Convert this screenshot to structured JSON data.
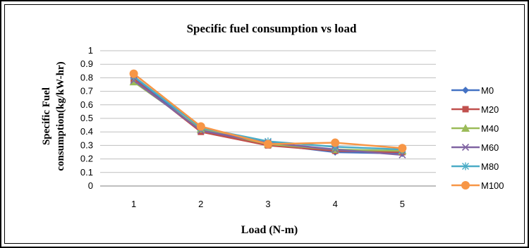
{
  "chart_data": {
    "type": "line",
    "title": "Specific fuel consumption vs load",
    "xlabel": "Load (N-m)",
    "ylabel_lines": [
      "Specific Fuel",
      "consumption(kg/kW-hr)"
    ],
    "x": [
      1,
      2,
      3,
      4,
      5
    ],
    "ylim": [
      0,
      1
    ],
    "yticks": [
      "0",
      "0.1",
      "0.2",
      "0.3",
      "0.4",
      "0.5",
      "0.6",
      "0.7",
      "0.8",
      "0.9",
      "1"
    ],
    "xticks": [
      "1",
      "2",
      "3",
      "4",
      "5"
    ],
    "grid": true,
    "legend_position": "right",
    "series": [
      {
        "name": "M0",
        "values": [
          0.8,
          0.41,
          0.31,
          0.25,
          0.24
        ],
        "color": "#4472C4",
        "marker": "diamond"
      },
      {
        "name": "M20",
        "values": [
          0.79,
          0.4,
          0.3,
          0.26,
          0.25
        ],
        "color": "#C0504D",
        "marker": "square"
      },
      {
        "name": "M40",
        "values": [
          0.77,
          0.42,
          0.31,
          0.27,
          0.26
        ],
        "color": "#9BBB59",
        "marker": "triangle"
      },
      {
        "name": "M60",
        "values": [
          0.78,
          0.41,
          0.32,
          0.27,
          0.23
        ],
        "color": "#8064A2",
        "marker": "x"
      },
      {
        "name": "M80",
        "values": [
          0.81,
          0.43,
          0.33,
          0.29,
          0.27
        ],
        "color": "#4BACC6",
        "marker": "star"
      },
      {
        "name": "M100",
        "values": [
          0.83,
          0.44,
          0.31,
          0.32,
          0.28
        ],
        "color": "#F79646",
        "marker": "circle"
      }
    ]
  }
}
